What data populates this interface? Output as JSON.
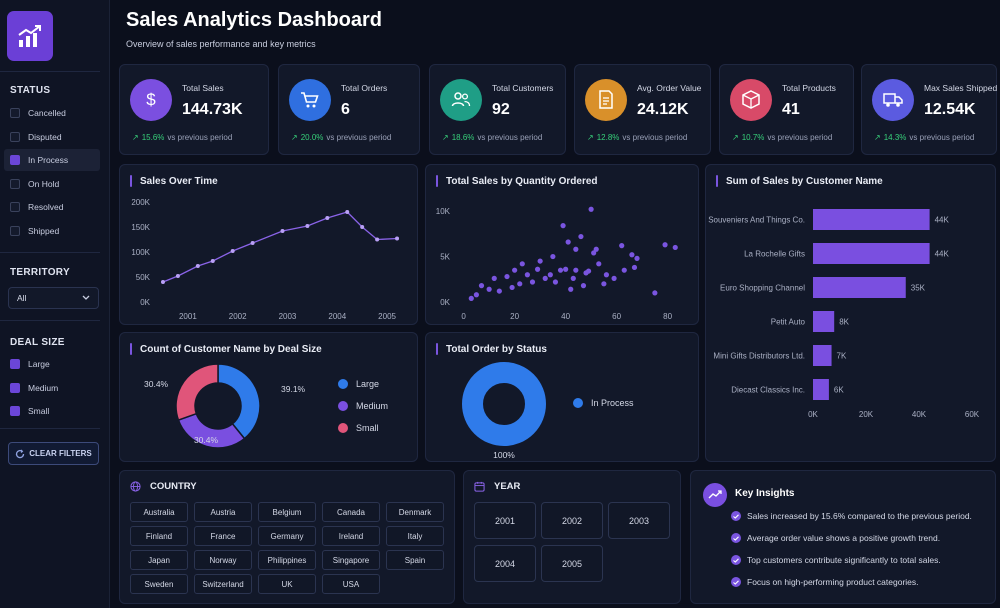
{
  "header": {
    "title": "Sales Analytics Dashboard",
    "subtitle": "Overview of sales performance and key metrics"
  },
  "sidebar": {
    "status_title": "STATUS",
    "status_items": [
      {
        "label": "Cancelled",
        "checked": false
      },
      {
        "label": "Disputed",
        "checked": false
      },
      {
        "label": "In Process",
        "checked": true
      },
      {
        "label": "On Hold",
        "checked": false
      },
      {
        "label": "Resolved",
        "checked": false
      },
      {
        "label": "Shipped",
        "checked": false
      }
    ],
    "territory_title": "TERRITORY",
    "territory_value": "All",
    "deal_size_title": "DEAL SIZE",
    "deal_size_items": [
      {
        "label": "Large",
        "checked": true
      },
      {
        "label": "Medium",
        "checked": true
      },
      {
        "label": "Small",
        "checked": true
      }
    ],
    "clear_label": "CLEAR FILTERS"
  },
  "kpis": [
    {
      "label": "Total Sales",
      "value": "144.73K",
      "change": "15.6%",
      "suffix": "vs previous period",
      "color": "#7b4fe0",
      "icon": "dollar-icon"
    },
    {
      "label": "Total Orders",
      "value": "6",
      "change": "20.0%",
      "suffix": "vs previous period",
      "color": "#2f6fe0",
      "icon": "cart-icon"
    },
    {
      "label": "Total Customers",
      "value": "92",
      "change": "18.6%",
      "suffix": "vs previous period",
      "color": "#1f9e86",
      "icon": "users-icon"
    },
    {
      "label": "Avg. Order Value",
      "value": "24.12K",
      "change": "12.8%",
      "suffix": "vs previous period",
      "color": "#d9902a",
      "icon": "receipt-icon"
    },
    {
      "label": "Total Products",
      "value": "41",
      "change": "10.7%",
      "suffix": "vs previous period",
      "color": "#d84a68",
      "icon": "box-icon"
    },
    {
      "label": "Max Sales Shipped",
      "value": "12.54K",
      "change": "14.3%",
      "suffix": "vs previous period",
      "color": "#5b5be0",
      "icon": "truck-icon"
    }
  ],
  "panels": {
    "sales_over_time": "Sales Over Time",
    "sales_by_qty": "Total Sales by Quantity Ordered",
    "sales_by_customer": "Sum of Sales by Customer Name",
    "deal_size": "Count of Customer Name by Deal Size",
    "order_status": "Total Order by Status",
    "country": "COUNTRY",
    "year": "YEAR",
    "insights": "Key Insights"
  },
  "chart_data": [
    {
      "type": "line",
      "title": "Sales Over Time",
      "x": [
        2000.5,
        2000.8,
        2001.2,
        2001.5,
        2001.9,
        2002.3,
        2002.9,
        2003.4,
        2003.8,
        2004.2,
        2004.5,
        2004.8,
        2005.2
      ],
      "values": [
        40000,
        52000,
        72000,
        82000,
        102000,
        118000,
        142000,
        152000,
        168000,
        180000,
        150000,
        125000,
        127000
      ],
      "xticks": [
        "2001",
        "2002",
        "2003",
        "2004",
        "2005"
      ],
      "yticks": [
        "0K",
        "50K",
        "100K",
        "150K",
        "200K"
      ],
      "xlim": [
        2000.4,
        2005.4
      ],
      "ylim": [
        0,
        200000
      ],
      "color": "#8a63e8"
    },
    {
      "type": "scatter",
      "title": "Total Sales by Quantity Ordered",
      "points": [
        [
          3,
          400
        ],
        [
          5,
          800
        ],
        [
          7,
          1800
        ],
        [
          10,
          1400
        ],
        [
          12,
          2600
        ],
        [
          14,
          1200
        ],
        [
          17,
          2800
        ],
        [
          19,
          1600
        ],
        [
          20,
          3500
        ],
        [
          22,
          2000
        ],
        [
          23,
          4200
        ],
        [
          25,
          3000
        ],
        [
          27,
          2200
        ],
        [
          29,
          3600
        ],
        [
          30,
          4500
        ],
        [
          32,
          2600
        ],
        [
          34,
          3000
        ],
        [
          35,
          5000
        ],
        [
          36,
          2200
        ],
        [
          38,
          3500
        ],
        [
          39,
          8400
        ],
        [
          40,
          3600
        ],
        [
          41,
          6600
        ],
        [
          42,
          1400
        ],
        [
          43,
          2600
        ],
        [
          44,
          3500
        ],
        [
          44,
          5800
        ],
        [
          46,
          7200
        ],
        [
          47,
          1800
        ],
        [
          48,
          3200
        ],
        [
          49,
          3400
        ],
        [
          50,
          10200
        ],
        [
          51,
          5400
        ],
        [
          52,
          5800
        ],
        [
          53,
          4200
        ],
        [
          55,
          2000
        ],
        [
          56,
          3000
        ],
        [
          59,
          2600
        ],
        [
          62,
          6200
        ],
        [
          63,
          3500
        ],
        [
          66,
          5200
        ],
        [
          67,
          3800
        ],
        [
          68,
          4800
        ],
        [
          75,
          1000
        ],
        [
          79,
          6300
        ],
        [
          83,
          6000
        ]
      ],
      "xticks": [
        "0",
        "20",
        "40",
        "60",
        "80"
      ],
      "yticks": [
        "0K",
        "5K",
        "10K"
      ],
      "xlim": [
        -3,
        88
      ],
      "ylim": [
        0,
        11000
      ],
      "color": "#7a55e0"
    },
    {
      "type": "bar",
      "orientation": "horizontal",
      "title": "Sum of Sales by Customer Name",
      "categories": [
        "Souveniers And Things Co.",
        "La Rochelle Gifts",
        "Euro Shopping Channel",
        "Petit Auto",
        "Mini Gifts Distributors Ltd.",
        "Diecast Classics Inc."
      ],
      "values": [
        44000,
        44000,
        35000,
        8000,
        7000,
        6000
      ],
      "labels": [
        "44K",
        "44K",
        "35K",
        "8K",
        "7K",
        "6K"
      ],
      "xticks": [
        "0K",
        "20K",
        "40K",
        "60K"
      ],
      "xlim": [
        0,
        60000
      ],
      "color": "#7a4fe0"
    },
    {
      "type": "pie",
      "title": "Count of Customer Name by Deal Size",
      "categories": [
        "Large",
        "Medium",
        "Small"
      ],
      "values": [
        39.1,
        30.4,
        30.4
      ],
      "labels": [
        "39.1%",
        "30.4%",
        "30.4%"
      ],
      "colors": [
        "#2f7bea",
        "#7a4fe0",
        "#e0557a"
      ]
    },
    {
      "type": "pie",
      "title": "Total Order by Status",
      "categories": [
        "In Process"
      ],
      "values": [
        100
      ],
      "labels": [
        "100%"
      ],
      "colors": [
        "#2f7bea"
      ]
    }
  ],
  "countries": [
    "Australia",
    "Austria",
    "Belgium",
    "Canada",
    "Denmark",
    "Finland",
    "France",
    "Germany",
    "Ireland",
    "Italy",
    "Japan",
    "Norway",
    "Philippines",
    "Singapore",
    "Spain",
    "Sweden",
    "Switzerland",
    "UK",
    "USA"
  ],
  "years": [
    "2001",
    "2002",
    "2003",
    "2004",
    "2005"
  ],
  "insights": [
    "Sales increased by 15.6% compared to the previous period.",
    "Average order value shows a positive growth trend.",
    "Top customers contribute significantly to total sales.",
    "Focus on high-performing product categories."
  ]
}
